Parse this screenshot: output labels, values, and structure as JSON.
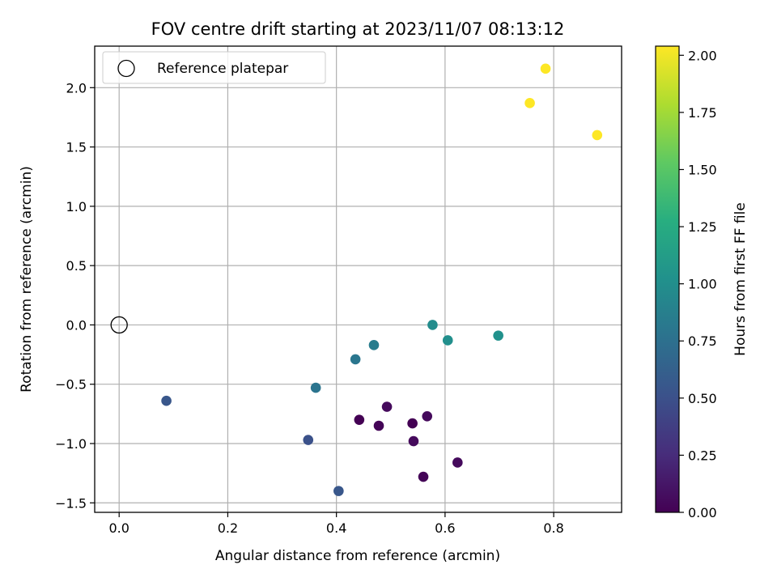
{
  "chart_data": {
    "type": "scatter",
    "title": "FOV centre drift starting at 2023/11/07 08:13:12",
    "xlabel": "Angular distance from reference (arcmin)",
    "ylabel": "Rotation from reference (arcmin)",
    "xlim": [
      -0.045,
      0.925
    ],
    "ylim": [
      -1.58,
      2.35
    ],
    "xticks": [
      0.0,
      0.2,
      0.4,
      0.6,
      0.8
    ],
    "xtick_labels": [
      "0.0",
      "0.2",
      "0.4",
      "0.6",
      "0.8"
    ],
    "yticks": [
      -1.5,
      -1.0,
      -0.5,
      0.0,
      0.5,
      1.0,
      1.5,
      2.0
    ],
    "ytick_labels": [
      "−1.5",
      "−1.0",
      "−0.5",
      "0.0",
      "0.5",
      "1.0",
      "1.5",
      "2.0"
    ],
    "grid": true,
    "legend": {
      "position": "top-left",
      "entries": [
        "Reference platepar"
      ]
    },
    "reference_point": {
      "x": 0.0,
      "y": 0.0,
      "label": "Reference platepar"
    },
    "colorbar": {
      "label": "Hours from first FF file",
      "range": [
        0.0,
        2.04
      ],
      "ticks": [
        0.0,
        0.25,
        0.5,
        0.75,
        1.0,
        1.25,
        1.5,
        1.75,
        2.0
      ],
      "tick_labels": [
        "0.00",
        "0.25",
        "0.50",
        "0.75",
        "1.00",
        "1.25",
        "1.50",
        "1.75",
        "2.00"
      ],
      "colormap": "viridis"
    },
    "points": [
      {
        "x": 0.442,
        "y": -0.8,
        "hours": 0.0
      },
      {
        "x": 0.478,
        "y": -0.85,
        "hours": 0.02
      },
      {
        "x": 0.493,
        "y": -0.69,
        "hours": 0.05
      },
      {
        "x": 0.54,
        "y": -0.83,
        "hours": 0.0
      },
      {
        "x": 0.542,
        "y": -0.98,
        "hours": 0.05
      },
      {
        "x": 0.567,
        "y": -0.77,
        "hours": 0.05
      },
      {
        "x": 0.56,
        "y": -1.28,
        "hours": 0.02
      },
      {
        "x": 0.623,
        "y": -1.16,
        "hours": 0.05
      },
      {
        "x": 0.087,
        "y": -0.64,
        "hours": 0.55
      },
      {
        "x": 0.348,
        "y": -0.97,
        "hours": 0.5
      },
      {
        "x": 0.404,
        "y": -1.4,
        "hours": 0.55
      },
      {
        "x": 0.362,
        "y": -0.53,
        "hours": 0.78
      },
      {
        "x": 0.435,
        "y": -0.29,
        "hours": 0.8
      },
      {
        "x": 0.469,
        "y": -0.17,
        "hours": 0.85
      },
      {
        "x": 0.577,
        "y": 0.0,
        "hours": 0.98
      },
      {
        "x": 0.605,
        "y": -0.13,
        "hours": 1.0
      },
      {
        "x": 0.698,
        "y": -0.09,
        "hours": 1.02
      },
      {
        "x": 0.756,
        "y": 1.87,
        "hours": 2.04
      },
      {
        "x": 0.785,
        "y": 2.16,
        "hours": 2.04
      },
      {
        "x": 0.88,
        "y": 1.6,
        "hours": 2.04
      }
    ]
  }
}
